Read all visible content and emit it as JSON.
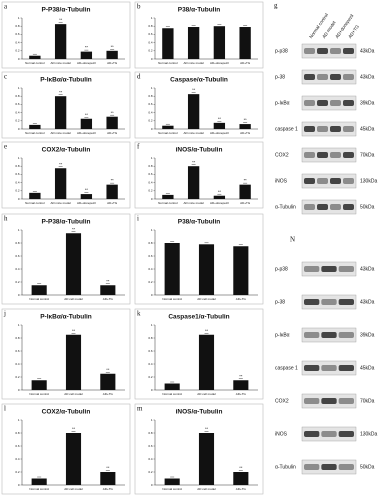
{
  "chart_data": [
    {
      "type": "bar",
      "panel": "a",
      "title": "P-P38/α-Tubulin",
      "categories": [
        "Normal control",
        "AD mice model",
        "AD+donepezil",
        "AD+TG"
      ],
      "values": [
        0.08,
        0.85,
        0.18,
        0.2
      ],
      "color": "#111111",
      "ylim": [
        0,
        1
      ],
      "yticks": [
        0,
        0.2,
        0.4,
        0.6,
        0.8,
        1
      ],
      "annotations": [
        {
          "index": 1,
          "text": "**"
        },
        {
          "index": 2,
          "text": "**"
        },
        {
          "index": 3,
          "text": "**"
        }
      ]
    },
    {
      "type": "bar",
      "panel": "b",
      "title": "P38/α-Tubulin",
      "categories": [
        "Normal control",
        "AD mice model",
        "AD+donepezil",
        "AD+TG"
      ],
      "values": [
        0.75,
        0.78,
        0.8,
        0.78
      ],
      "color": "#111111",
      "ylim": [
        0,
        1
      ],
      "yticks": [
        0,
        0.2,
        0.4,
        0.6,
        0.8,
        1
      ],
      "annotations": []
    },
    {
      "type": "bar",
      "panel": "c",
      "title": "P-IκBα/α-Tubulin",
      "categories": [
        "Normal control",
        "AD mice model",
        "AD+donepezil",
        "AD+TG"
      ],
      "values": [
        0.1,
        0.8,
        0.25,
        0.3
      ],
      "color": "#111111",
      "ylim": [
        0,
        1
      ],
      "yticks": [
        0,
        0.2,
        0.4,
        0.6,
        0.8,
        1
      ],
      "annotations": [
        {
          "index": 1,
          "text": "**"
        },
        {
          "index": 2,
          "text": "**"
        },
        {
          "index": 3,
          "text": "**"
        }
      ]
    },
    {
      "type": "bar",
      "panel": "d",
      "title": "Caspase/α-Tubulin",
      "categories": [
        "Normal control",
        "AD mice model",
        "AD+donepezil",
        "AD+TG"
      ],
      "values": [
        0.08,
        0.85,
        0.15,
        0.12
      ],
      "color": "#111111",
      "ylim": [
        0,
        1
      ],
      "yticks": [
        0,
        0.2,
        0.4,
        0.6,
        0.8,
        1
      ],
      "annotations": [
        {
          "index": 1,
          "text": "**"
        },
        {
          "index": 2,
          "text": "**"
        },
        {
          "index": 3,
          "text": "**"
        }
      ]
    },
    {
      "type": "bar",
      "panel": "e",
      "title": "COX2/α-Tubulin",
      "categories": [
        "Normal control",
        "AD mice model",
        "AD+donepezil",
        "AD+TG"
      ],
      "values": [
        0.15,
        0.75,
        0.12,
        0.35
      ],
      "color": "#111111",
      "ylim": [
        0,
        1
      ],
      "yticks": [
        0,
        0.2,
        0.4,
        0.6,
        0.8,
        1
      ],
      "annotations": [
        {
          "index": 1,
          "text": "**"
        },
        {
          "index": 2,
          "text": "**"
        },
        {
          "index": 3,
          "text": "**"
        }
      ]
    },
    {
      "type": "bar",
      "panel": "f",
      "title": "iNOS/α-Tubulin",
      "categories": [
        "Normal control",
        "AD mice model",
        "AD+donepezil",
        "AD+TG"
      ],
      "values": [
        0.1,
        0.8,
        0.08,
        0.35
      ],
      "color": "#111111",
      "ylim": [
        0,
        1
      ],
      "yticks": [
        0,
        0.2,
        0.4,
        0.6,
        0.8,
        1
      ],
      "annotations": [
        {
          "index": 1,
          "text": "**"
        },
        {
          "index": 2,
          "text": "**"
        },
        {
          "index": 3,
          "text": "**"
        }
      ]
    },
    {
      "type": "bar",
      "panel": "h",
      "title": "P-P38/α-Tubulin",
      "categories": [
        "Normal control",
        "AD cell model",
        "AD+TG"
      ],
      "values": [
        0.15,
        0.95,
        0.15
      ],
      "color": "#111111",
      "ylim": [
        0,
        1
      ],
      "yticks": [
        0,
        0.2,
        0.4,
        0.6,
        0.8,
        1
      ],
      "annotations": [
        {
          "index": 1,
          "text": "**"
        },
        {
          "index": 2,
          "text": "**"
        }
      ]
    },
    {
      "type": "bar",
      "panel": "i",
      "title": "P38/α-Tubulin",
      "categories": [
        "Normal control",
        "AD cell model",
        "AD+TG"
      ],
      "values": [
        0.8,
        0.78,
        0.75
      ],
      "color": "#111111",
      "ylim": [
        0,
        1
      ],
      "yticks": [
        0,
        0.2,
        0.4,
        0.6,
        0.8,
        1
      ],
      "annotations": []
    },
    {
      "type": "bar",
      "panel": "j",
      "title": "P-IκBα/α-Tubulin",
      "categories": [
        "Normal control",
        "AD cell model",
        "AD+TG"
      ],
      "values": [
        0.15,
        0.85,
        0.25
      ],
      "color": "#111111",
      "ylim": [
        0,
        1
      ],
      "yticks": [
        0,
        0.2,
        0.4,
        0.6,
        0.8,
        1
      ],
      "annotations": [
        {
          "index": 1,
          "text": "**"
        },
        {
          "index": 2,
          "text": "**"
        }
      ]
    },
    {
      "type": "bar",
      "panel": "k",
      "title": "Caspase1/α-Tubulin",
      "categories": [
        "Normal control",
        "AD cell model",
        "AD+TG"
      ],
      "values": [
        0.1,
        0.85,
        0.15
      ],
      "color": "#111111",
      "ylim": [
        0,
        1
      ],
      "yticks": [
        0,
        0.2,
        0.4,
        0.6,
        0.8,
        1
      ],
      "annotations": [
        {
          "index": 1,
          "text": "**"
        },
        {
          "index": 2,
          "text": "**"
        }
      ]
    },
    {
      "type": "bar",
      "panel": "l",
      "title": "COX2/α-Tubulin",
      "categories": [
        "Normal control",
        "AD cell model",
        "AD+TG"
      ],
      "values": [
        0.1,
        0.8,
        0.2
      ],
      "color": "#111111",
      "ylim": [
        0,
        1
      ],
      "yticks": [
        0,
        0.2,
        0.4,
        0.6,
        0.8,
        1
      ],
      "annotations": [
        {
          "index": 1,
          "text": "**"
        },
        {
          "index": 2,
          "text": "**"
        }
      ]
    },
    {
      "type": "bar",
      "panel": "m",
      "title": "iNOS/α-Tubulin",
      "categories": [
        "Normal control",
        "AD cell model",
        "AD+TG"
      ],
      "values": [
        0.1,
        0.8,
        0.2
      ],
      "color": "#111111",
      "ylim": [
        0,
        1
      ],
      "yticks": [
        0,
        0.2,
        0.4,
        0.6,
        0.8,
        1
      ],
      "annotations": [
        {
          "index": 1,
          "text": "**"
        },
        {
          "index": 2,
          "text": "**"
        }
      ]
    }
  ],
  "blots": [
    {
      "panel": "g",
      "columns": [
        "Normal control",
        "AD model",
        "AD+donepezil",
        "AD+TG"
      ],
      "rows": [
        {
          "label": "p-p38",
          "size": "43kDa"
        },
        {
          "label": "p-38",
          "size": "43kDa"
        },
        {
          "label": "p-IκBα",
          "size": "39kDa"
        },
        {
          "label": "caspase 1",
          "size": "45kDa"
        },
        {
          "label": "COX2",
          "size": "70kDa"
        },
        {
          "label": "iNOS",
          "size": "130kDa"
        },
        {
          "label": "α-Tubulin",
          "size": "50kDa"
        }
      ]
    },
    {
      "panel": "N",
      "rows": [
        {
          "label": "p-p38",
          "size": "43kDa"
        },
        {
          "label": "p-38",
          "size": "43kDa"
        },
        {
          "label": "p-IκBα",
          "size": "39kDa"
        },
        {
          "label": "caspase 1",
          "size": "45kDa"
        },
        {
          "label": "COX2",
          "size": "70kDa"
        },
        {
          "label": "iNOS",
          "size": "130kDa"
        },
        {
          "label": "α-Tubulin",
          "size": "50kDa"
        }
      ]
    }
  ]
}
